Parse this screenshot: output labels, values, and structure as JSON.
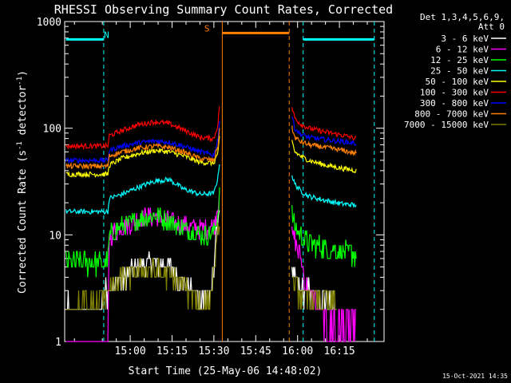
{
  "chart_data": {
    "type": "line",
    "title": "RHESSI Observing Summary Count Rates, Corrected",
    "xlabel": "Start Time (25-May-06 14:48:02)",
    "ylabel_main": "Corrected Count Rate (s",
    "ylabel_sup1": "-1",
    "ylabel_mid": " detector",
    "ylabel_sup2": "-1",
    "ylabel_end": ")",
    "yscale": "log",
    "ylim": [
      1,
      1000
    ],
    "xlim_minutes": [
      -11.5,
      103
    ],
    "x_ticks": [
      {
        "min": 12,
        "label": "15:00"
      },
      {
        "min": 27,
        "label": "15:15"
      },
      {
        "min": 42,
        "label": "15:30"
      },
      {
        "min": 57,
        "label": "15:45"
      },
      {
        "min": 72,
        "label": "16:00"
      },
      {
        "min": 87,
        "label": "16:15"
      }
    ],
    "y_ticks": [
      {
        "v": 1,
        "label": "1"
      },
      {
        "v": 10,
        "label": "10"
      },
      {
        "v": 100,
        "label": "100"
      },
      {
        "v": 1000,
        "label": "1000"
      }
    ],
    "legend_header_1": "Det 1,3,4,5,6,9,",
    "legend_header_2": "Att 0",
    "series": [
      {
        "name": "3 - 6 keV",
        "color": "#ffffff",
        "pre": [
          [
            -11,
            2.0
          ],
          [
            1,
            2.0
          ],
          [
            3,
            3.0
          ],
          [
            7,
            3.5
          ],
          [
            10,
            4.0
          ],
          [
            14,
            5.0
          ],
          [
            20,
            5.5
          ],
          [
            26,
            5.0
          ],
          [
            32,
            3.5
          ],
          [
            37,
            2.6
          ],
          [
            41,
            2.6
          ],
          [
            42.5,
            8
          ],
          [
            44,
            20
          ]
        ],
        "post": [
          [
            70,
            4.0
          ],
          [
            72,
            3.5
          ],
          [
            74,
            3.0
          ],
          [
            80,
            2.8
          ],
          [
            86,
            2.2
          ]
        ]
      },
      {
        "name": "6 - 12 keV",
        "color": "#ff00ff",
        "pre": [
          [
            -11,
            1.0
          ],
          [
            4,
            1.0
          ],
          [
            4.5,
            10
          ],
          [
            9,
            12
          ],
          [
            15,
            14
          ],
          [
            21,
            15
          ],
          [
            27,
            13
          ],
          [
            33,
            12
          ],
          [
            39,
            11.5
          ],
          [
            42,
            12
          ],
          [
            43.5,
            20
          ],
          [
            44,
            28
          ]
        ],
        "post": [
          [
            70,
            10
          ],
          [
            71,
            9
          ],
          [
            73,
            6
          ],
          [
            75,
            3.5
          ],
          [
            80,
            1.8
          ],
          [
            86,
            1.4
          ],
          [
            93,
            1.5
          ]
        ]
      },
      {
        "name": "12 - 25 keV",
        "color": "#00ff00",
        "pre": [
          [
            -11,
            5.5
          ],
          [
            4,
            5.5
          ],
          [
            4.5,
            10
          ],
          [
            9,
            12
          ],
          [
            15,
            14
          ],
          [
            21,
            15.5
          ],
          [
            27,
            13
          ],
          [
            33,
            11
          ],
          [
            39,
            10
          ],
          [
            42,
            10.5
          ],
          [
            43.5,
            16
          ],
          [
            44,
            26
          ]
        ],
        "post": [
          [
            70,
            16
          ],
          [
            71,
            12
          ],
          [
            73,
            10
          ],
          [
            76,
            8.5
          ],
          [
            82,
            7.5
          ],
          [
            88,
            7
          ],
          [
            93,
            6.5
          ]
        ]
      },
      {
        "name": "25 - 50 keV",
        "color": "#00ffff",
        "pre": [
          [
            -11,
            16.5
          ],
          [
            4,
            16.5
          ],
          [
            4.5,
            22
          ],
          [
            9,
            24
          ],
          [
            15,
            28
          ],
          [
            21,
            32
          ],
          [
            26,
            33
          ],
          [
            31,
            27
          ],
          [
            37,
            24
          ],
          [
            42,
            24.5
          ],
          [
            43.5,
            35
          ],
          [
            44,
            48
          ]
        ],
        "post": [
          [
            70,
            36
          ],
          [
            71,
            30
          ],
          [
            73,
            26
          ],
          [
            76,
            23
          ],
          [
            82,
            21
          ],
          [
            88,
            19.5
          ],
          [
            93,
            19
          ]
        ]
      },
      {
        "name": "50 - 100 keV",
        "color": "#ffff00",
        "pre": [
          [
            -11,
            37
          ],
          [
            4,
            37
          ],
          [
            4.5,
            45
          ],
          [
            9,
            52
          ],
          [
            15,
            58
          ],
          [
            21,
            62
          ],
          [
            26,
            60
          ],
          [
            31,
            55
          ],
          [
            37,
            48
          ],
          [
            42,
            47
          ],
          [
            43.5,
            60
          ],
          [
            44,
            80
          ]
        ],
        "post": [
          [
            70,
            75
          ],
          [
            71,
            60
          ],
          [
            73,
            55
          ],
          [
            76,
            50
          ],
          [
            82,
            45
          ],
          [
            88,
            42
          ],
          [
            93,
            40
          ]
        ]
      },
      {
        "name": "100 - 300 keV",
        "color": "#ff0000",
        "pre": [
          [
            -11,
            68
          ],
          [
            4,
            68
          ],
          [
            4.5,
            85
          ],
          [
            9,
            95
          ],
          [
            15,
            108
          ],
          [
            21,
            115
          ],
          [
            26,
            110
          ],
          [
            31,
            97
          ],
          [
            37,
            82
          ],
          [
            42,
            80
          ],
          [
            43.5,
            110
          ],
          [
            44,
            165
          ]
        ],
        "post": [
          [
            70,
            155
          ],
          [
            71,
            125
          ],
          [
            73,
            110
          ],
          [
            76,
            100
          ],
          [
            82,
            92
          ],
          [
            88,
            86
          ],
          [
            93,
            80
          ]
        ]
      },
      {
        "name": "300 - 800 keV",
        "color": "#0000ff",
        "pre": [
          [
            -11,
            50
          ],
          [
            4,
            50
          ],
          [
            4.5,
            62
          ],
          [
            9,
            68
          ],
          [
            15,
            73
          ],
          [
            21,
            76
          ],
          [
            26,
            74
          ],
          [
            31,
            68
          ],
          [
            37,
            60
          ],
          [
            42,
            56
          ],
          [
            43.5,
            80
          ],
          [
            44,
            120
          ]
        ],
        "post": [
          [
            70,
            130
          ],
          [
            71,
            100
          ],
          [
            73,
            88
          ],
          [
            76,
            82
          ],
          [
            82,
            78
          ],
          [
            88,
            75
          ],
          [
            93,
            72
          ]
        ]
      },
      {
        "name": "800 - 7000 keV",
        "color": "#ff8000",
        "pre": [
          [
            -11,
            44
          ],
          [
            4,
            44
          ],
          [
            4.5,
            55
          ],
          [
            9,
            60
          ],
          [
            15,
            65
          ],
          [
            21,
            68
          ],
          [
            26,
            66
          ],
          [
            31,
            60
          ],
          [
            37,
            52
          ],
          [
            42,
            50
          ],
          [
            43.5,
            70
          ],
          [
            44,
            100
          ]
        ],
        "post": [
          [
            70,
            100
          ],
          [
            71,
            82
          ],
          [
            73,
            75
          ],
          [
            76,
            70
          ],
          [
            82,
            66
          ],
          [
            88,
            62
          ],
          [
            93,
            58
          ]
        ]
      },
      {
        "name": "7000 - 15000 keV",
        "color": "#808000",
        "pre": [
          [
            -11,
            2.0
          ],
          [
            1,
            2.3
          ],
          [
            3,
            3.0
          ],
          [
            7,
            3.5
          ],
          [
            10,
            4.0
          ],
          [
            14,
            4.5
          ],
          [
            20,
            4.8
          ],
          [
            26,
            4.2
          ],
          [
            32,
            3.2
          ],
          [
            37,
            2.4
          ],
          [
            41,
            2.4
          ],
          [
            42.5,
            6
          ],
          [
            44,
            14
          ]
        ],
        "post": [
          [
            70,
            3.5
          ],
          [
            72,
            3.0
          ],
          [
            74,
            2.6
          ],
          [
            78,
            2.5
          ],
          [
            82,
            2.4
          ],
          [
            86,
            2.3
          ]
        ]
      }
    ],
    "state_bars": [
      {
        "label": "N",
        "color": "#00ffff",
        "from": -11,
        "to": 2.5,
        "level": 680,
        "label_min": 3.5
      },
      {
        "label": "S",
        "color": "#ff8000",
        "from": 45,
        "to": 69,
        "level": 780,
        "label_min": 39.5
      },
      {
        "label": "",
        "color": "#00ffff",
        "from": 74,
        "to": 99.5,
        "level": 680,
        "label_min": 0
      }
    ],
    "vlines": [
      {
        "min": 2.5,
        "color": "#00ffff",
        "dashed": true
      },
      {
        "min": 45,
        "color": "#ff8000",
        "dashed": false
      },
      {
        "min": 69,
        "color": "#ff8000",
        "dashed": true
      },
      {
        "min": 74,
        "color": "#00ffff",
        "dashed": true
      },
      {
        "min": 99.5,
        "color": "#00ffff",
        "dashed": true
      }
    ],
    "gap": [
      45,
      69
    ]
  },
  "footer": {
    "timestamp": "15-Oct-2021 14:35"
  }
}
